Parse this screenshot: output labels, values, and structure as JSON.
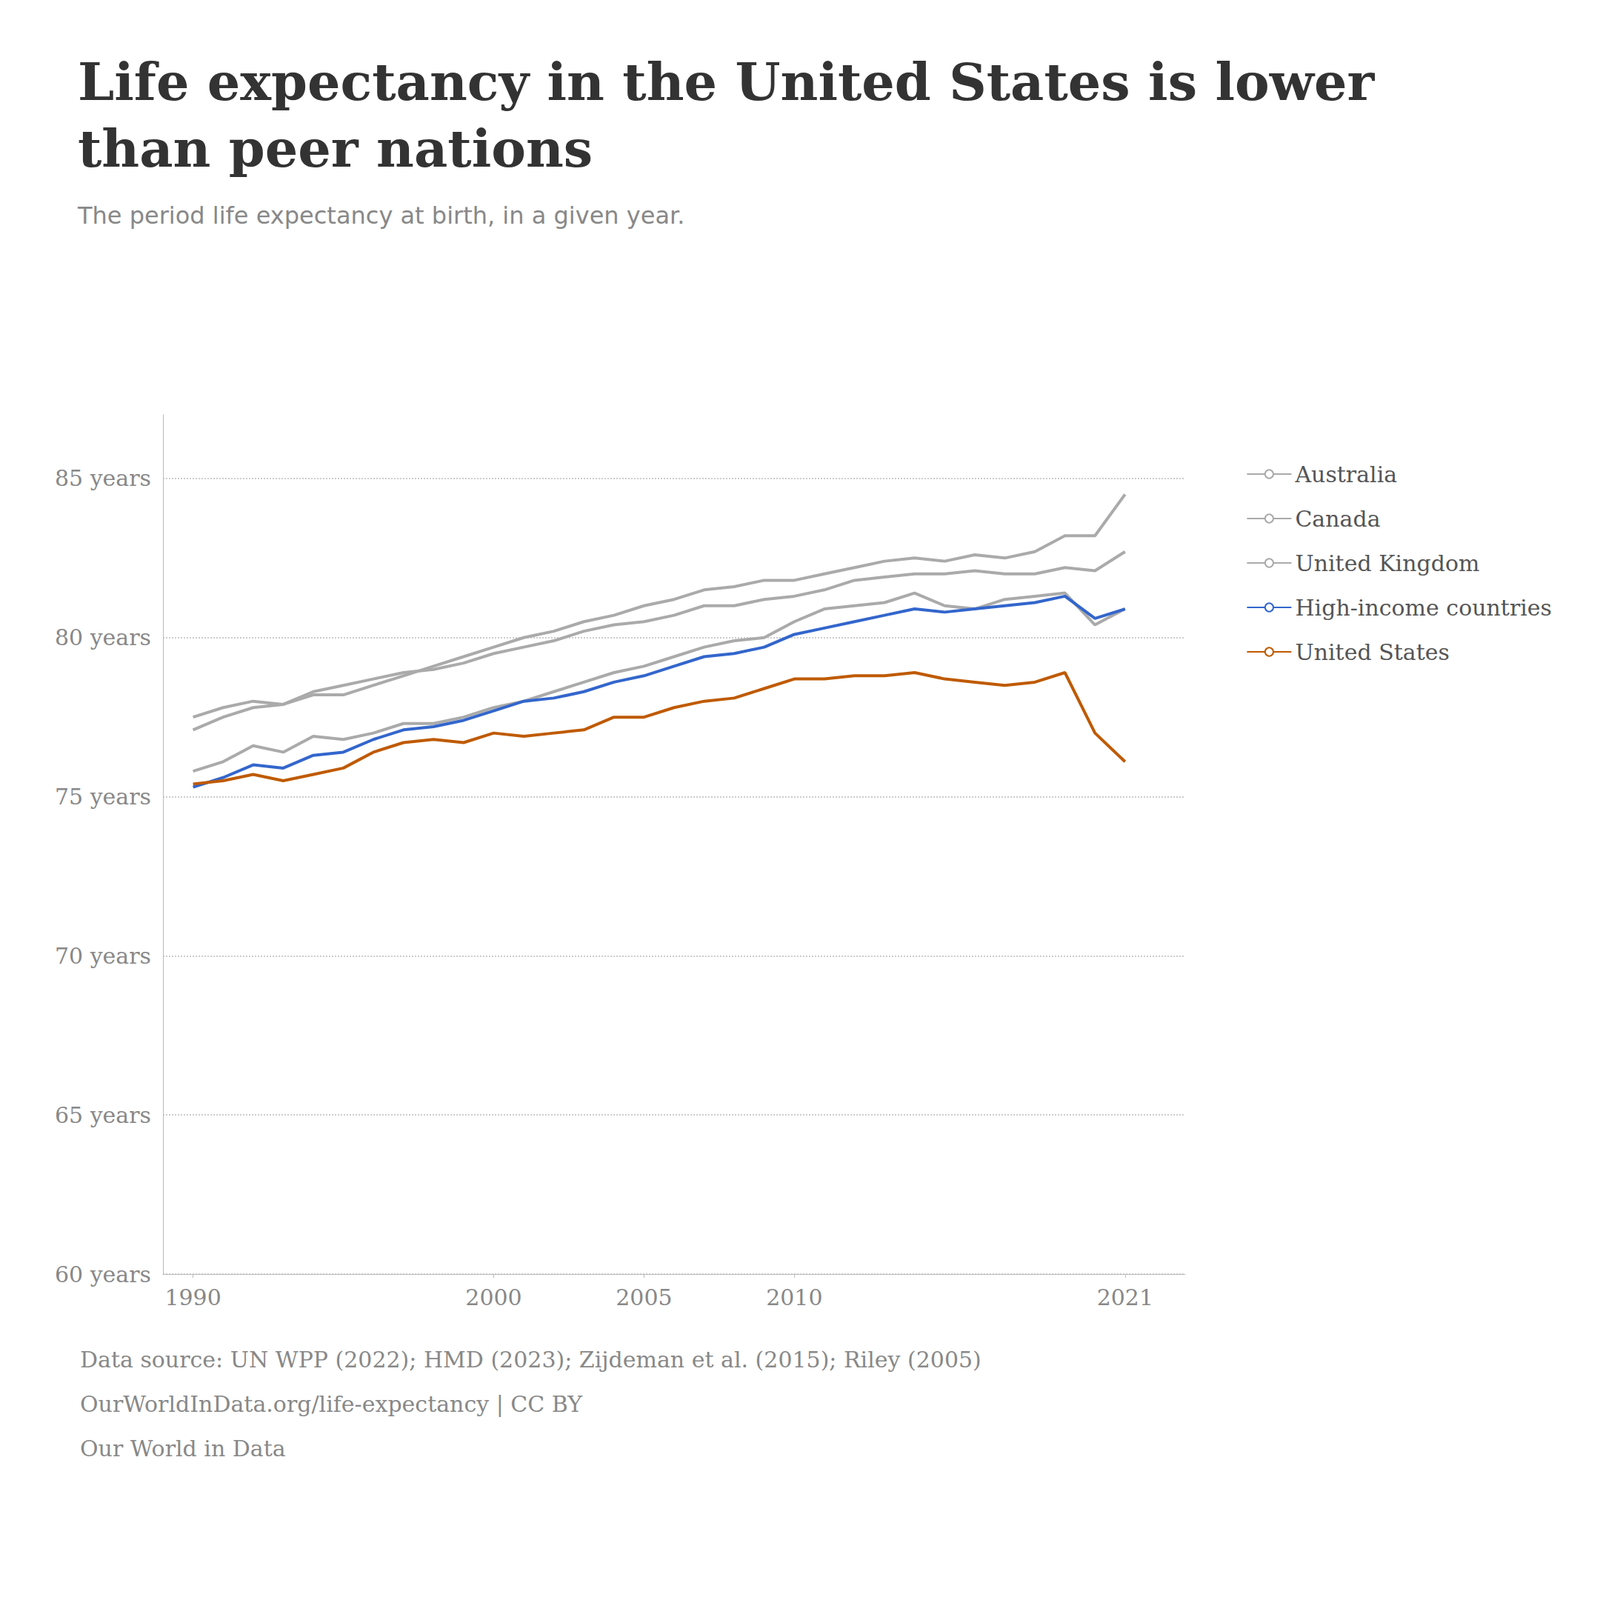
{
  "chart_data": {
    "type": "line",
    "title": "Life expectancy in the United States is lower than peer nations",
    "subtitle": "The period life expectancy at birth, in a given year.",
    "annotations": [
      "Data source: UN WPP (2022); HMD (2023); Zijdeman et al. (2015); Riley (2005)",
      "OurWorldInData.org/life-expectancy | CC BY",
      "Our World in Data"
    ],
    "x": [
      1990,
      1991,
      1992,
      1993,
      1994,
      1995,
      1996,
      1997,
      1998,
      1999,
      2000,
      2001,
      2002,
      2003,
      2004,
      2005,
      2006,
      2007,
      2008,
      2009,
      2010,
      2011,
      2012,
      2013,
      2014,
      2015,
      2016,
      2017,
      2018,
      2019,
      2020,
      2021
    ],
    "series": [
      {
        "name": "Australia",
        "color": "#aaaaaa",
        "values": [
          77.1,
          77.5,
          77.8,
          77.9,
          78.2,
          78.2,
          78.5,
          78.8,
          79.1,
          79.4,
          79.7,
          80.0,
          80.2,
          80.5,
          80.7,
          81.0,
          81.2,
          81.5,
          81.6,
          81.8,
          81.8,
          82.0,
          82.2,
          82.4,
          82.5,
          82.4,
          82.6,
          82.5,
          82.7,
          83.2,
          83.2,
          84.5
        ]
      },
      {
        "name": "Canada",
        "color": "#aaaaaa",
        "values": [
          77.5,
          77.8,
          78.0,
          77.9,
          78.3,
          78.5,
          78.7,
          78.9,
          79.0,
          79.2,
          79.5,
          79.7,
          79.9,
          80.2,
          80.4,
          80.5,
          80.7,
          81.0,
          81.0,
          81.2,
          81.3,
          81.5,
          81.8,
          81.9,
          82.0,
          82.0,
          82.1,
          82.0,
          82.0,
          82.2,
          82.1,
          82.7
        ]
      },
      {
        "name": "United Kingdom",
        "color": "#aaaaaa",
        "values": [
          75.8,
          76.1,
          76.6,
          76.4,
          76.9,
          76.8,
          77.0,
          77.3,
          77.3,
          77.5,
          77.8,
          78.0,
          78.3,
          78.6,
          78.9,
          79.1,
          79.4,
          79.7,
          79.9,
          80.0,
          80.5,
          80.9,
          81.0,
          81.1,
          81.4,
          81.0,
          80.9,
          81.2,
          81.3,
          81.4,
          80.4,
          80.9
        ]
      },
      {
        "name": "High-income countries",
        "color": "#3366cc",
        "values": [
          75.3,
          75.6,
          76.0,
          75.9,
          76.3,
          76.4,
          76.8,
          77.1,
          77.2,
          77.4,
          77.7,
          78.0,
          78.1,
          78.3,
          78.6,
          78.8,
          79.1,
          79.4,
          79.5,
          79.7,
          80.1,
          80.3,
          80.5,
          80.7,
          80.9,
          80.8,
          80.9,
          81.0,
          81.1,
          81.3,
          80.6,
          80.9
        ]
      },
      {
        "name": "United States",
        "color": "#bf5a00",
        "values": [
          75.4,
          75.5,
          75.7,
          75.5,
          75.7,
          75.9,
          76.4,
          76.7,
          76.8,
          76.7,
          77.0,
          76.9,
          77.0,
          77.1,
          77.5,
          77.5,
          77.8,
          78.0,
          78.1,
          78.4,
          78.7,
          78.7,
          78.8,
          78.8,
          78.9,
          78.7,
          78.6,
          78.5,
          78.6,
          78.9,
          77.0,
          76.1
        ]
      }
    ],
    "xlim": [
      1989,
      2023
    ],
    "xticks": [
      1990,
      2000,
      2005,
      2010,
      2021
    ],
    "ylim": [
      60,
      87
    ],
    "yticks": [
      {
        "value": 60,
        "label": "60 years"
      },
      {
        "value": 65,
        "label": "65 years"
      },
      {
        "value": 70,
        "label": "70 years"
      },
      {
        "value": 75,
        "label": "75 years"
      },
      {
        "value": 80,
        "label": "80 years"
      },
      {
        "value": 85,
        "label": "85 years"
      }
    ],
    "grid": true
  }
}
